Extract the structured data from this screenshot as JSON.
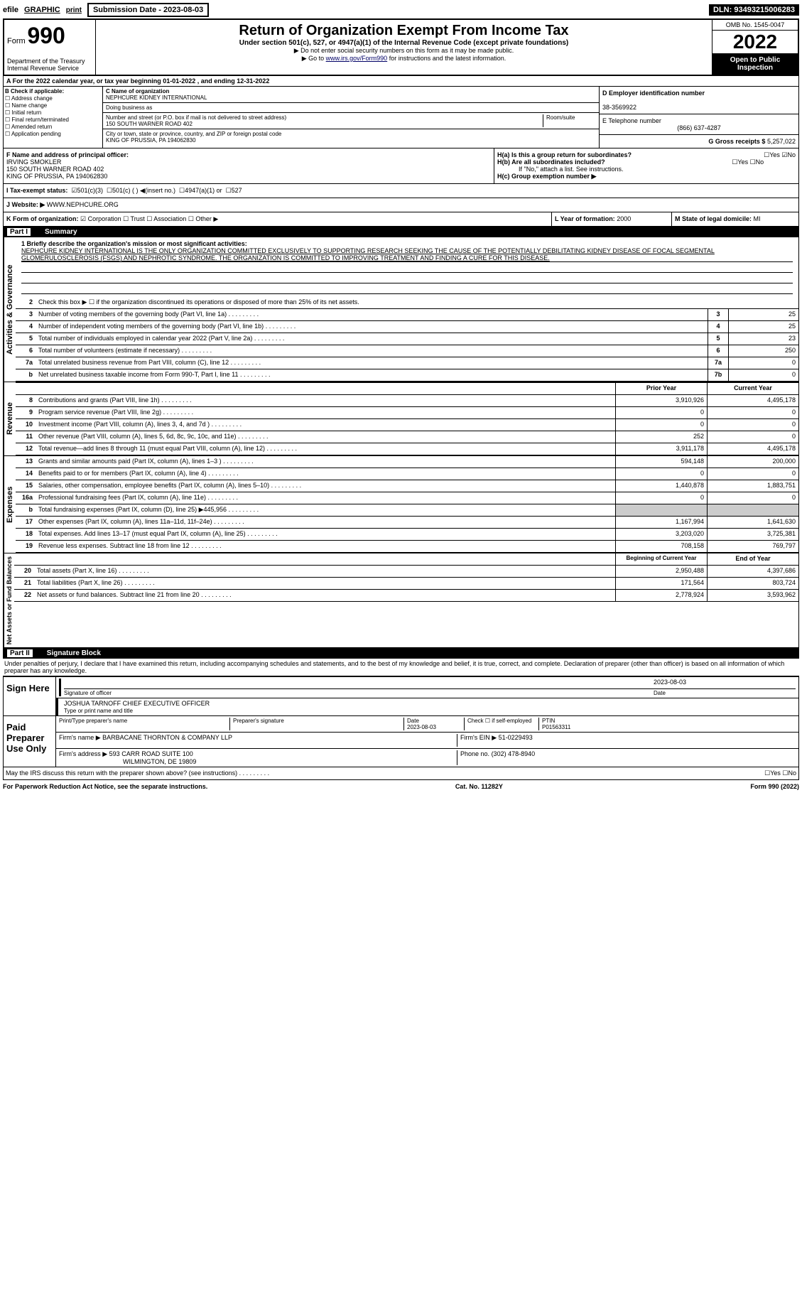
{
  "top": {
    "efile": "efile",
    "graphic": "GRAPHIC",
    "print": "print",
    "submission": "Submission Date - 2023-08-03",
    "dln": "DLN: 93493215006283"
  },
  "header": {
    "form_label": "Form",
    "form_num": "990",
    "title": "Return of Organization Exempt From Income Tax",
    "subtitle": "Under section 501(c), 527, or 4947(a)(1) of the Internal Revenue Code (except private foundations)",
    "note1": "▶ Do not enter social security numbers on this form as it may be made public.",
    "note2_pre": "▶ Go to ",
    "note2_link": "www.irs.gov/Form990",
    "note2_post": " for instructions and the latest information.",
    "dept": "Department of the Treasury",
    "irs": "Internal Revenue Service",
    "omb": "OMB No. 1545-0047",
    "year": "2022",
    "inspect": "Open to Public Inspection"
  },
  "period": {
    "text": "A For the 2022 calendar year, or tax year beginning 01-01-2022  , and ending 12-31-2022"
  },
  "checkB": {
    "label": "B Check if applicable:",
    "items": [
      "Address change",
      "Name change",
      "Initial return",
      "Final return/terminated",
      "Amended return",
      "Application pending"
    ]
  },
  "org": {
    "name_label": "C Name of organization",
    "name": "NEPHCURE KIDNEY INTERNATIONAL",
    "dba_label": "Doing business as",
    "addr_label": "Number and street (or P.O. box if mail is not delivered to street address)",
    "room_label": "Room/suite",
    "addr": "150 SOUTH WARNER ROAD 402",
    "city_label": "City or town, state or province, country, and ZIP or foreign postal code",
    "city": "KING OF PRUSSIA, PA  194062830",
    "ein_label": "D Employer identification number",
    "ein": "38-3569922",
    "phone_label": "E Telephone number",
    "phone": "(866) 637-4287",
    "gross_label": "G Gross receipts $",
    "gross": "5,257,022"
  },
  "officer": {
    "label": "F  Name and address of principal officer:",
    "name": "IRVING SMOKLER",
    "addr": "150 SOUTH WARNER ROAD 402",
    "city": "KING OF PRUSSIA, PA  194062830"
  },
  "h": {
    "ha_label": "H(a)  Is this a group return for subordinates?",
    "hb_label": "H(b)  Are all subordinates included?",
    "hb_note": "If \"No,\" attach a list. See instructions.",
    "hc_label": "H(c)  Group exemption number ▶"
  },
  "status": {
    "label": "I  Tax-exempt status:",
    "opts": [
      "501(c)(3)",
      "501(c) (  ) ◀(insert no.)",
      "4947(a)(1) or",
      "527"
    ]
  },
  "website": {
    "label": "J  Website: ▶",
    "url": "WWW.NEPHCURE.ORG"
  },
  "formorg": {
    "label": "K Form of organization:",
    "opts": [
      "Corporation",
      "Trust",
      "Association",
      "Other ▶"
    ]
  },
  "yearform": {
    "label": "L Year of formation:",
    "val": "2000",
    "state_label": "M State of legal domicile:",
    "state": "MI"
  },
  "part1": {
    "title": "Part I",
    "name": "Summary"
  },
  "mission": {
    "label": "1  Briefly describe the organization's mission or most significant activities:",
    "text": "NEPHCURE KIDNEY INTERNATIONAL IS THE ONLY ORGANIZATION COMMITTED EXCLUSIVELY TO SUPPORTING RESEARCH SEEKING THE CAUSE OF THE POTENTIALLY DEBILITATING KIDNEY DISEASE OF FOCAL SEGMENTAL GLOMERULOSCLEROSIS (FSGS) AND NEPHROTIC SYNDROME. THE ORGANIZATION IS COMMITTED TO IMPROVING TREATMENT AND FINDING A CURE FOR THIS DISEASE."
  },
  "gov_lines": [
    {
      "n": "2",
      "t": "Check this box ▶ ☐ if the organization discontinued its operations or disposed of more than 25% of its net assets."
    },
    {
      "n": "3",
      "t": "Number of voting members of the governing body (Part VI, line 1a)",
      "box": "3",
      "v": "25"
    },
    {
      "n": "4",
      "t": "Number of independent voting members of the governing body (Part VI, line 1b)",
      "box": "4",
      "v": "25"
    },
    {
      "n": "5",
      "t": "Total number of individuals employed in calendar year 2022 (Part V, line 2a)",
      "box": "5",
      "v": "23"
    },
    {
      "n": "6",
      "t": "Total number of volunteers (estimate if necessary)",
      "box": "6",
      "v": "250"
    },
    {
      "n": "7a",
      "t": "Total unrelated business revenue from Part VIII, column (C), line 12",
      "box": "7a",
      "v": "0"
    },
    {
      "n": "b",
      "t": "Net unrelated business taxable income from Form 990-T, Part I, line 11",
      "box": "7b",
      "v": "0"
    }
  ],
  "rev_header": {
    "prior": "Prior Year",
    "current": "Current Year"
  },
  "revenue": [
    {
      "n": "8",
      "t": "Contributions and grants (Part VIII, line 1h)",
      "p": "3,910,926",
      "c": "4,495,178"
    },
    {
      "n": "9",
      "t": "Program service revenue (Part VIII, line 2g)",
      "p": "0",
      "c": "0"
    },
    {
      "n": "10",
      "t": "Investment income (Part VIII, column (A), lines 3, 4, and 7d )",
      "p": "0",
      "c": "0"
    },
    {
      "n": "11",
      "t": "Other revenue (Part VIII, column (A), lines 5, 6d, 8c, 9c, 10c, and 11e)",
      "p": "252",
      "c": "0"
    },
    {
      "n": "12",
      "t": "Total revenue—add lines 8 through 11 (must equal Part VIII, column (A), line 12)",
      "p": "3,911,178",
      "c": "4,495,178"
    }
  ],
  "expenses": [
    {
      "n": "13",
      "t": "Grants and similar amounts paid (Part IX, column (A), lines 1–3 )",
      "p": "594,148",
      "c": "200,000"
    },
    {
      "n": "14",
      "t": "Benefits paid to or for members (Part IX, column (A), line 4)",
      "p": "0",
      "c": "0"
    },
    {
      "n": "15",
      "t": "Salaries, other compensation, employee benefits (Part IX, column (A), lines 5–10)",
      "p": "1,440,878",
      "c": "1,883,751"
    },
    {
      "n": "16a",
      "t": "Professional fundraising fees (Part IX, column (A), line 11e)",
      "p": "0",
      "c": "0"
    },
    {
      "n": "b",
      "t": "Total fundraising expenses (Part IX, column (D), line 25) ▶445,956",
      "p": "",
      "c": "",
      "gray": true
    },
    {
      "n": "17",
      "t": "Other expenses (Part IX, column (A), lines 11a–11d, 11f–24e)",
      "p": "1,167,994",
      "c": "1,641,630"
    },
    {
      "n": "18",
      "t": "Total expenses. Add lines 13–17 (must equal Part IX, column (A), line 25)",
      "p": "3,203,020",
      "c": "3,725,381"
    },
    {
      "n": "19",
      "t": "Revenue less expenses. Subtract line 18 from line 12",
      "p": "708,158",
      "c": "769,797"
    }
  ],
  "net_header": {
    "p": "Beginning of Current Year",
    "c": "End of Year"
  },
  "net": [
    {
      "n": "20",
      "t": "Total assets (Part X, line 16)",
      "p": "2,950,488",
      "c": "4,397,686"
    },
    {
      "n": "21",
      "t": "Total liabilities (Part X, line 26)",
      "p": "171,564",
      "c": "803,724"
    },
    {
      "n": "22",
      "t": "Net assets or fund balances. Subtract line 21 from line 20",
      "p": "2,778,924",
      "c": "3,593,962"
    }
  ],
  "part2": {
    "title": "Part II",
    "name": "Signature Block",
    "decl": "Under penalties of perjury, I declare that I have examined this return, including accompanying schedules and statements, and to the best of my knowledge and belief, it is true, correct, and complete. Declaration of preparer (other than officer) is based on all information of which preparer has any knowledge."
  },
  "sign": {
    "label": "Sign Here",
    "sig_label": "Signature of officer",
    "date_label": "Date",
    "date": "2023-08-03",
    "name": "JOSHUA TARNOFF  CHIEF EXECUTIVE OFFICER",
    "name_label": "Type or print name and title"
  },
  "preparer": {
    "label": "Paid Preparer Use Only",
    "print_label": "Print/Type preparer's name",
    "sig_label": "Preparer's signature",
    "date_label": "Date",
    "date": "2023-08-03",
    "check_label": "Check ☐ if self-employed",
    "ptin_label": "PTIN",
    "ptin": "P01563311",
    "firm_label": "Firm's name  ▶",
    "firm": "BARBACANE THORNTON & COMPANY LLP",
    "ein_label": "Firm's EIN ▶",
    "ein": "51-0229493",
    "addr_label": "Firm's address ▶",
    "addr": "593 CARR ROAD SUITE 100",
    "city": "WILMINGTON, DE  19809",
    "phone_label": "Phone no.",
    "phone": "(302) 478-8940"
  },
  "discuss": "May the IRS discuss this return with the preparer shown above? (see instructions)",
  "footer": {
    "left": "For Paperwork Reduction Act Notice, see the separate instructions.",
    "center": "Cat. No. 11282Y",
    "right": "Form 990 (2022)"
  },
  "vert": {
    "gov": "Activities & Governance",
    "rev": "Revenue",
    "exp": "Expenses",
    "net": "Net Assets or Fund Balances"
  }
}
